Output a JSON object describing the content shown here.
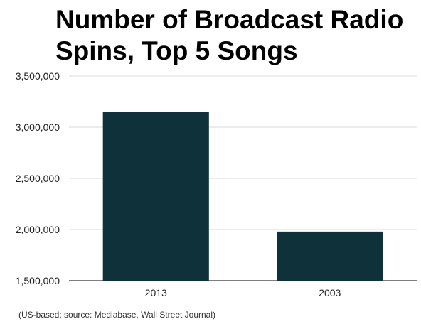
{
  "chart_data": {
    "type": "bar",
    "title": "Number of Broadcast Radio Spins, Top 5 Songs",
    "categories": [
      "2013",
      "2003"
    ],
    "values": [
      3150000,
      1980000
    ],
    "xlabel": "",
    "ylabel": "",
    "ylim": [
      1500000,
      3500000
    ],
    "yticks": [
      1500000,
      2000000,
      2500000,
      3000000,
      3500000
    ],
    "ytick_labels": [
      "1,500,000",
      "2,000,000",
      "2,500,000",
      "3,000,000",
      "3,500,000"
    ],
    "grid": true,
    "legend": "none",
    "bar_color": "#0f313a",
    "grid_color": "#d9d9d9",
    "axis_color": "#333333"
  },
  "footnote": "(US-based; source: Mediabase, Wall Street Journal)"
}
